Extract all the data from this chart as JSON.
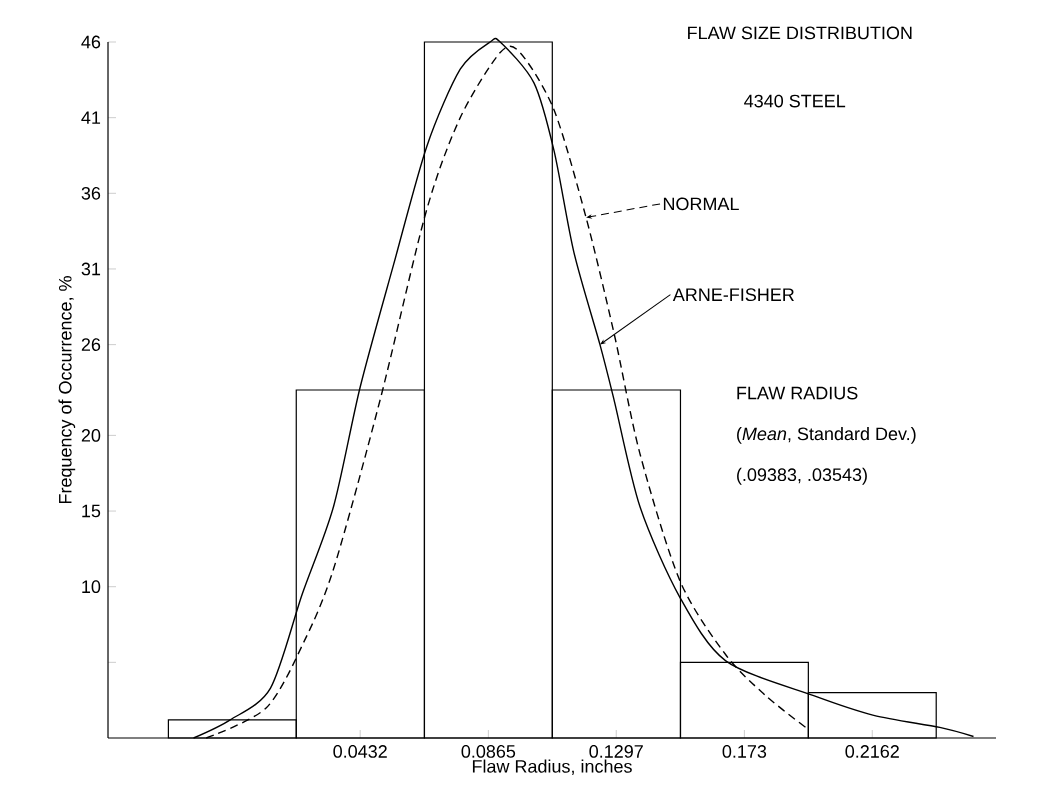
{
  "chart_data": {
    "type": "histogram",
    "title": "FLAW SIZE DISTRIBUTION",
    "subtitle": "4340 STEEL",
    "xlabel": "Flaw Radius, inches",
    "ylabel": "Frequency of Occurrence, %",
    "bins": [
      -0.0216,
      0.0216,
      0.0649,
      0.1081,
      0.1514,
      0.1946,
      0.2378
    ],
    "values": [
      1.2,
      23,
      46,
      23,
      5,
      3
    ],
    "color": "#000000",
    "series": [
      {
        "name": "NORMAL",
        "type": "line",
        "line_style": "dashed",
        "color": "#000000",
        "x": [
          -0.0088,
          0.0115,
          0.0243,
          0.0344,
          0.05,
          0.0655,
          0.077,
          0.0905,
          0.0972,
          0.1087,
          0.1195,
          0.1289,
          0.1377,
          0.1512,
          0.1667,
          0.1802,
          0.1937
        ],
        "values": [
          0,
          2,
          6.4,
          11.3,
          22.4,
          34.8,
          41,
          45.3,
          45.3,
          41.5,
          34.4,
          26.8,
          18.8,
          10.4,
          5.5,
          2.8,
          0.7
        ]
      },
      {
        "name": "ARNE-FISHER",
        "type": "line",
        "line_style": "solid",
        "color": "#000000",
        "x": [
          -0.0131,
          -0.0007,
          0.0129,
          0.0236,
          0.0342,
          0.0432,
          0.0545,
          0.0657,
          0.077,
          0.0871,
          0.0905,
          0.1019,
          0.1087,
          0.1154,
          0.1242,
          0.1289,
          0.1377,
          0.1512,
          0.1667,
          0.1964,
          0.2167,
          0.239,
          0.2504
        ],
        "values": [
          0,
          1.2,
          3.3,
          9.5,
          15.3,
          23.2,
          31.3,
          39.1,
          44.2,
          46,
          46,
          43.3,
          38.8,
          32.1,
          26,
          22.4,
          15.3,
          9.3,
          5.1,
          2.8,
          1.5,
          0.7,
          0.1
        ]
      }
    ],
    "annotations": [
      "FLAW RADIUS",
      "(*Mean*, Standard Dev.)",
      "(.09383, .03543)"
    ],
    "xlim": [
      -0.042,
      0.258
    ],
    "ylim": [
      0,
      46
    ],
    "xticks": [
      0.0432,
      0.0865,
      0.1297,
      0.173,
      0.2162
    ],
    "yticks": [
      {
        "value": 5,
        "label": null
      },
      10,
      15,
      20,
      26,
      31,
      36,
      41,
      46
    ]
  }
}
